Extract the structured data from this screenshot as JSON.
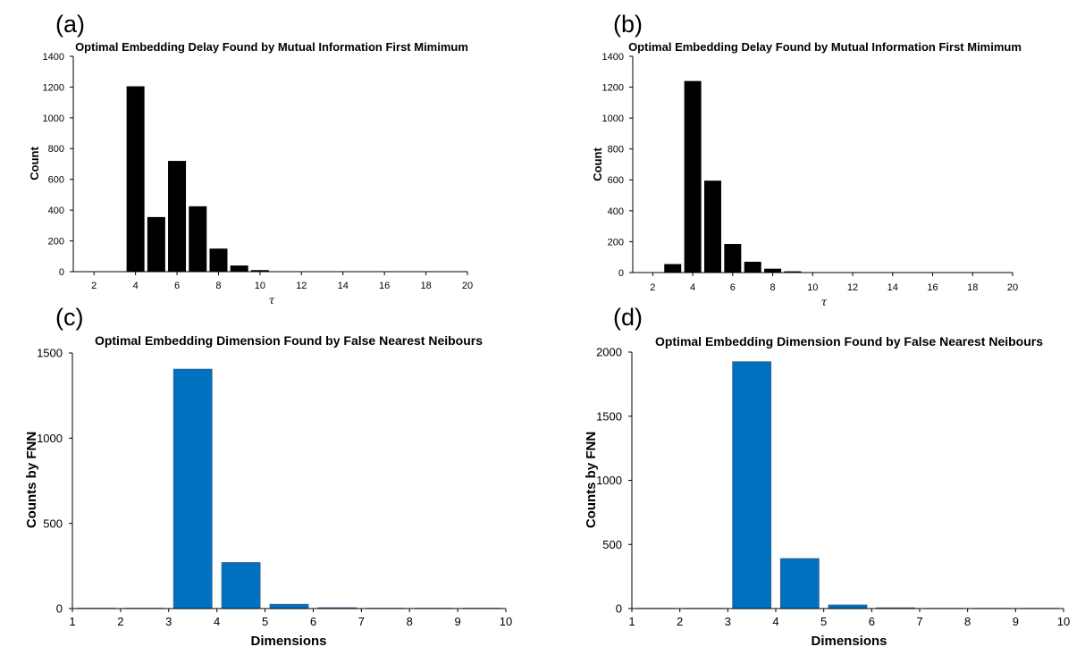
{
  "chart_data": [
    {
      "panel": "(a)",
      "type": "bar",
      "title": "Optimal Embedding Delay Found by Mutual Information First Mimimum",
      "xlabel": "τ",
      "ylabel": "Count",
      "xlim": [
        1,
        20
      ],
      "ylim": [
        0,
        1400
      ],
      "xticks": [
        2,
        4,
        6,
        8,
        10,
        12,
        14,
        16,
        18,
        20
      ],
      "yticks": [
        0,
        200,
        400,
        600,
        800,
        1000,
        1200,
        1400
      ],
      "x": [
        2,
        3,
        4,
        5,
        6,
        7,
        8,
        9,
        10,
        11,
        12,
        13,
        14,
        15,
        16,
        17,
        18,
        19,
        20
      ],
      "values": [
        0,
        0,
        1205,
        355,
        720,
        425,
        150,
        40,
        10,
        0,
        0,
        0,
        0,
        0,
        0,
        0,
        0,
        0,
        0
      ],
      "bar_color": "#000000",
      "grid": false
    },
    {
      "panel": "(b)",
      "type": "bar",
      "title": "Optimal Embedding Delay Found by Mutual Information First Mimimum",
      "xlabel": "τ",
      "ylabel": "Count",
      "xlim": [
        1,
        20
      ],
      "ylim": [
        0,
        1400
      ],
      "xticks": [
        2,
        4,
        6,
        8,
        10,
        12,
        14,
        16,
        18,
        20
      ],
      "yticks": [
        0,
        200,
        400,
        600,
        800,
        1000,
        1200,
        1400
      ],
      "x": [
        2,
        3,
        4,
        5,
        6,
        7,
        8,
        9,
        10,
        11,
        12,
        13,
        14,
        15,
        16,
        17,
        18,
        19,
        20
      ],
      "values": [
        0,
        55,
        1240,
        595,
        185,
        70,
        25,
        8,
        0,
        0,
        0,
        0,
        0,
        0,
        0,
        0,
        0,
        0,
        0
      ],
      "bar_color": "#000000",
      "grid": false
    },
    {
      "panel": "(c)",
      "type": "bar",
      "title": "Optimal Embedding Dimension Found by False Nearest Neibours",
      "xlabel": "Dimensions",
      "ylabel": "Counts by FNN",
      "xlim": [
        1,
        10
      ],
      "ylim": [
        0,
        1500
      ],
      "xticks": [
        1,
        2,
        3,
        4,
        5,
        6,
        7,
        8,
        9,
        10
      ],
      "yticks": [
        0,
        500,
        1000,
        1500
      ],
      "x": [
        1,
        2,
        3,
        4,
        5,
        6,
        7,
        8,
        9
      ],
      "values": [
        2,
        2,
        1405,
        270,
        25,
        5,
        2,
        2,
        2
      ],
      "bar_color": "#0070C0",
      "grid": false
    },
    {
      "panel": "(d)",
      "type": "bar",
      "title": "Optimal Embedding Dimension Found by False Nearest Neibours",
      "xlabel": "Dimensions",
      "ylabel": "Counts by FNN",
      "xlim": [
        1,
        10
      ],
      "ylim": [
        0,
        2000
      ],
      "xticks": [
        1,
        2,
        3,
        4,
        5,
        6,
        7,
        8,
        9,
        10
      ],
      "yticks": [
        0,
        500,
        1000,
        1500,
        2000
      ],
      "x": [
        1,
        2,
        3,
        4,
        5,
        6,
        7,
        8,
        9
      ],
      "values": [
        2,
        2,
        1925,
        390,
        28,
        6,
        2,
        2,
        2
      ],
      "bar_color": "#0070C0",
      "grid": false
    }
  ]
}
